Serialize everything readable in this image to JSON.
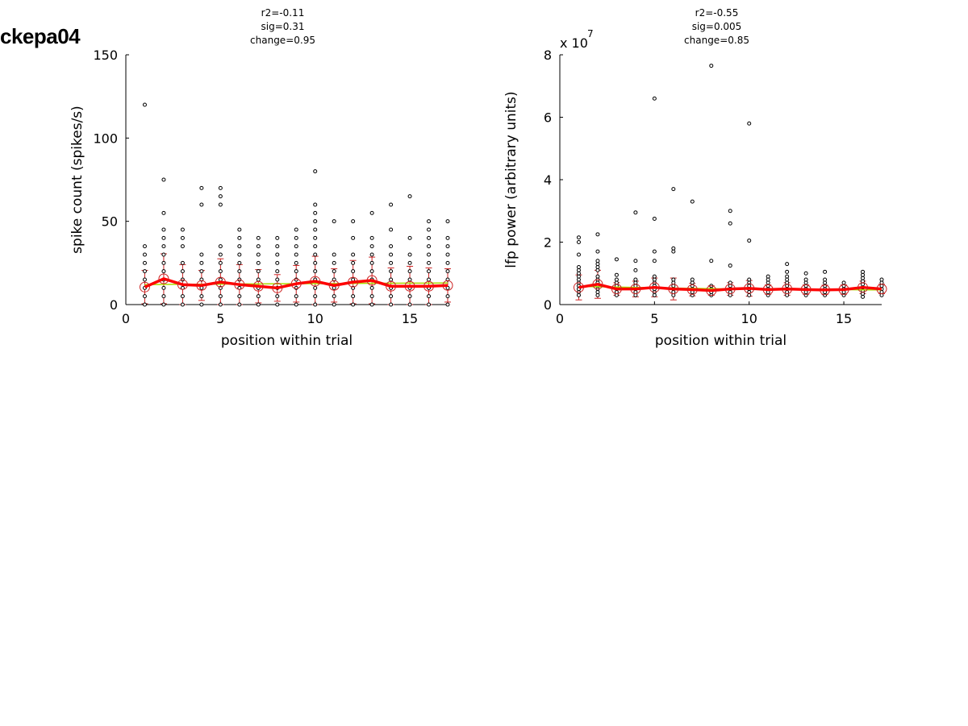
{
  "figure_label": "ckepa04",
  "chart_data": [
    {
      "type": "scatter",
      "stats_text": [
        "r2=-0.11",
        "sig=0.31",
        "change=0.95"
      ],
      "xlabel": "position within trial",
      "ylabel": "spike count (spikes/s)",
      "xlim": [
        0,
        17
      ],
      "ylim": [
        0,
        150
      ],
      "xticks": [
        0,
        5,
        10,
        15
      ],
      "yticks": [
        0,
        50,
        100,
        150
      ],
      "exponent_label": "",
      "mean_color": "#ff0000",
      "fit_color": "#aadd00",
      "point_color": "#000000",
      "series": [
        {
          "x": 1,
          "values": [
            0,
            5,
            10,
            15,
            20,
            25,
            30,
            35,
            120
          ]
        },
        {
          "x": 2,
          "values": [
            0,
            5,
            10,
            15,
            20,
            25,
            30,
            35,
            40,
            45,
            55,
            75
          ]
        },
        {
          "x": 3,
          "values": [
            0,
            5,
            10,
            15,
            20,
            25,
            35,
            40,
            45
          ]
        },
        {
          "x": 4,
          "values": [
            0,
            5,
            10,
            15,
            20,
            25,
            30,
            60,
            70
          ]
        },
        {
          "x": 5,
          "values": [
            0,
            5,
            10,
            15,
            20,
            25,
            30,
            35,
            60,
            65,
            70
          ]
        },
        {
          "x": 6,
          "values": [
            0,
            5,
            10,
            15,
            20,
            25,
            30,
            35,
            40,
            45
          ]
        },
        {
          "x": 7,
          "values": [
            0,
            5,
            10,
            15,
            20,
            25,
            30,
            35,
            40
          ]
        },
        {
          "x": 8,
          "values": [
            0,
            5,
            10,
            15,
            20,
            25,
            30,
            35,
            40
          ]
        },
        {
          "x": 9,
          "values": [
            0,
            5,
            10,
            15,
            20,
            25,
            30,
            35,
            40,
            45
          ]
        },
        {
          "x": 10,
          "values": [
            0,
            5,
            10,
            15,
            20,
            25,
            30,
            35,
            40,
            45,
            50,
            55,
            60,
            80
          ]
        },
        {
          "x": 11,
          "values": [
            0,
            5,
            10,
            15,
            20,
            25,
            30,
            50
          ]
        },
        {
          "x": 12,
          "values": [
            0,
            5,
            10,
            15,
            20,
            25,
            30,
            40,
            50
          ]
        },
        {
          "x": 13,
          "values": [
            0,
            5,
            10,
            15,
            20,
            25,
            30,
            35,
            40,
            55
          ]
        },
        {
          "x": 14,
          "values": [
            0,
            5,
            10,
            15,
            20,
            25,
            30,
            35,
            45,
            60
          ]
        },
        {
          "x": 15,
          "values": [
            0,
            5,
            10,
            15,
            20,
            25,
            30,
            40,
            65
          ]
        },
        {
          "x": 16,
          "values": [
            0,
            5,
            10,
            15,
            20,
            25,
            30,
            35,
            40,
            45,
            50
          ]
        },
        {
          "x": 17,
          "values": [
            0,
            5,
            10,
            15,
            20,
            25,
            30,
            35,
            40,
            50
          ]
        }
      ],
      "means": [
        10.5,
        15.5,
        12,
        11.5,
        13.5,
        12,
        11,
        10,
        12.5,
        14,
        11.5,
        13.5,
        14.5,
        11,
        11,
        11,
        11.5
      ],
      "sd": [
        10,
        15,
        12,
        9,
        14,
        12,
        10,
        8,
        11,
        15,
        10,
        13,
        14,
        11,
        12,
        11,
        10
      ],
      "fit": [
        12,
        12.1,
        12.2,
        12.2,
        12.3,
        12.4,
        12.4,
        12.5,
        12.5,
        12.6,
        12.6,
        12.7,
        12.8,
        12.8,
        12.9,
        12.9,
        13
      ]
    },
    {
      "type": "scatter",
      "stats_text": [
        "r2=-0.55",
        "sig=0.005",
        "change=0.85"
      ],
      "xlabel": "position within trial",
      "ylabel": "lfp power (arbitrary units)",
      "xlim": [
        0,
        17
      ],
      "ylim": [
        0,
        8
      ],
      "xticks": [
        0,
        5,
        10,
        15
      ],
      "yticks": [
        0,
        2,
        4,
        6,
        8
      ],
      "exponent_label": "x 10",
      "exponent_power": "7",
      "mean_color": "#ff0000",
      "fit_color": "#aadd00",
      "point_color": "#000000",
      "series": [
        {
          "x": 1,
          "values": [
            0.3,
            0.4,
            0.5,
            0.6,
            0.7,
            0.8,
            0.9,
            1.0,
            1.1,
            1.2,
            1.6,
            2.0,
            2.15
          ]
        },
        {
          "x": 2,
          "values": [
            0.3,
            0.4,
            0.5,
            0.6,
            0.7,
            0.8,
            0.9,
            1.1,
            1.2,
            1.3,
            1.4,
            1.7,
            2.25
          ]
        },
        {
          "x": 3,
          "values": [
            0.3,
            0.4,
            0.5,
            0.6,
            0.7,
            0.8,
            0.95,
            1.45
          ]
        },
        {
          "x": 4,
          "values": [
            0.3,
            0.4,
            0.5,
            0.6,
            0.7,
            0.8,
            1.1,
            1.4,
            2.95
          ]
        },
        {
          "x": 5,
          "values": [
            0.3,
            0.4,
            0.5,
            0.6,
            0.7,
            0.8,
            0.9,
            1.4,
            1.7,
            2.75,
            6.6
          ]
        },
        {
          "x": 6,
          "values": [
            0.3,
            0.4,
            0.5,
            0.6,
            0.7,
            0.8,
            1.7,
            1.8,
            3.7
          ]
        },
        {
          "x": 7,
          "values": [
            0.3,
            0.4,
            0.5,
            0.6,
            0.7,
            0.8,
            3.3
          ]
        },
        {
          "x": 8,
          "values": [
            0.3,
            0.4,
            0.5,
            0.6,
            1.4,
            7.65
          ]
        },
        {
          "x": 9,
          "values": [
            0.3,
            0.4,
            0.5,
            0.6,
            0.7,
            1.25,
            2.6,
            3.0
          ]
        },
        {
          "x": 10,
          "values": [
            0.3,
            0.4,
            0.5,
            0.6,
            0.7,
            0.8,
            2.05,
            5.8
          ]
        },
        {
          "x": 11,
          "values": [
            0.3,
            0.4,
            0.5,
            0.6,
            0.7,
            0.8,
            0.9
          ]
        },
        {
          "x": 12,
          "values": [
            0.3,
            0.4,
            0.5,
            0.6,
            0.7,
            0.8,
            0.9,
            1.05,
            1.3
          ]
        },
        {
          "x": 13,
          "values": [
            0.3,
            0.4,
            0.5,
            0.6,
            0.7,
            0.8,
            1.0
          ]
        },
        {
          "x": 14,
          "values": [
            0.3,
            0.4,
            0.5,
            0.6,
            0.7,
            0.8,
            1.05
          ]
        },
        {
          "x": 15,
          "values": [
            0.3,
            0.4,
            0.5,
            0.6,
            0.7
          ]
        },
        {
          "x": 16,
          "values": [
            0.25,
            0.35,
            0.45,
            0.55,
            0.65,
            0.75,
            0.85,
            0.95,
            1.05
          ]
        },
        {
          "x": 17,
          "values": [
            0.3,
            0.4,
            0.5,
            0.6,
            0.7,
            0.8
          ]
        }
      ],
      "means": [
        0.55,
        0.65,
        0.5,
        0.5,
        0.55,
        0.5,
        0.48,
        0.45,
        0.5,
        0.52,
        0.48,
        0.5,
        0.48,
        0.47,
        0.48,
        0.55,
        0.5
      ],
      "sd": [
        0.4,
        0.45,
        0.2,
        0.25,
        0.3,
        0.35,
        0.2,
        0.15,
        0.2,
        0.25,
        0.15,
        0.2,
        0.15,
        0.15,
        0.15,
        0.2,
        0.15
      ],
      "fit": [
        0.58,
        0.57,
        0.56,
        0.55,
        0.54,
        0.53,
        0.52,
        0.51,
        0.5,
        0.5,
        0.49,
        0.49,
        0.48,
        0.48,
        0.48,
        0.47,
        0.47
      ]
    }
  ]
}
